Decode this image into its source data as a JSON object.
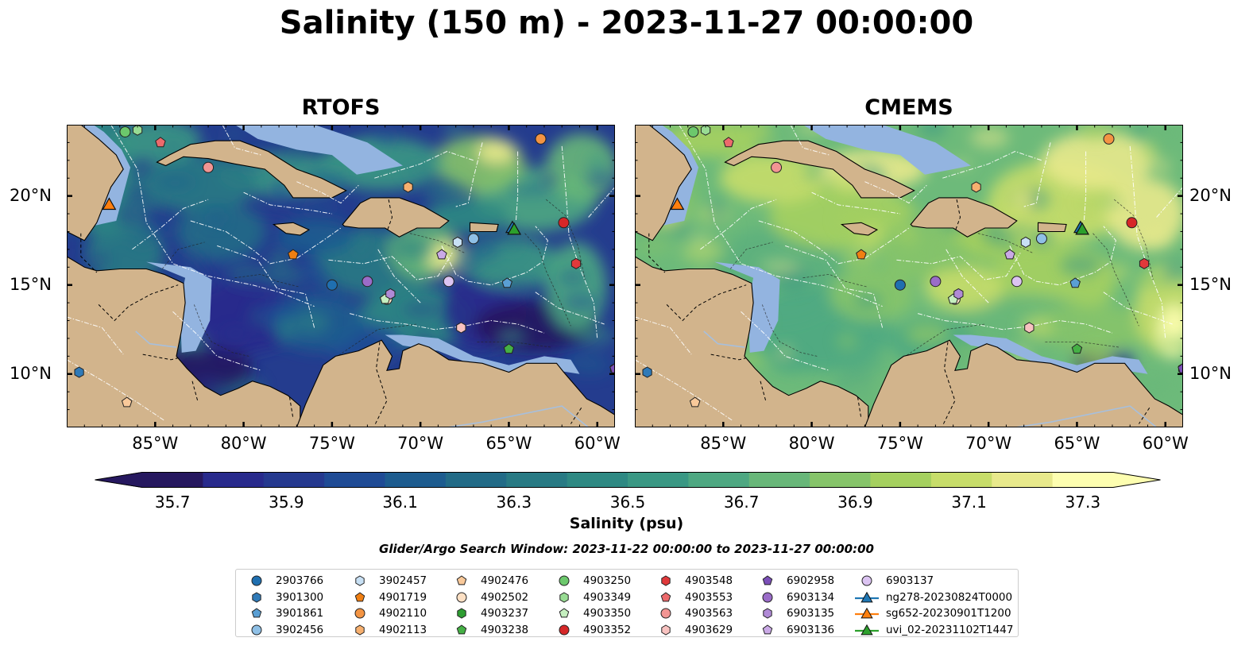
{
  "title": "Salinity (150 m) - 2023-11-27 00:00:00",
  "panels": [
    {
      "title": "RTOFS",
      "palette": "rtofs"
    },
    {
      "title": "CMEMS",
      "palette": "cmems"
    }
  ],
  "axes": {
    "lon_ticks": [
      "85°W",
      "80°W",
      "75°W",
      "70°W",
      "65°W",
      "60°W"
    ],
    "lat_ticks": [
      "20°N",
      "15°N",
      "10°N"
    ],
    "lon_range": [
      -90,
      -59
    ],
    "lat_range": [
      7,
      24
    ]
  },
  "colorbar": {
    "label": "Salinity (psu)",
    "ticks": [
      "35.7",
      "35.9",
      "36.1",
      "36.3",
      "36.5",
      "36.7",
      "36.9",
      "37.1",
      "37.3"
    ],
    "range": [
      35.7,
      37.3
    ],
    "extend": "both",
    "colors": [
      "#26185f",
      "#282a8c",
      "#25398f",
      "#1f4b95",
      "#1d5c8f",
      "#226b87",
      "#287a84",
      "#2e8983",
      "#3a9884",
      "#4ea882",
      "#68b779",
      "#86c46a",
      "#a5d05f",
      "#c7dd6a",
      "#e8e98c",
      "#fdfeb0"
    ]
  },
  "search_window": "Glider/Argo Search Window: 2023-11-22 00:00:00 to 2023-11-27 00:00:00",
  "legend": [
    {
      "label": "2903766",
      "marker": "circle",
      "color": "#1f6fb0"
    },
    {
      "label": "3901300",
      "marker": "hexagon",
      "color": "#2f7ab8"
    },
    {
      "label": "3901861",
      "marker": "pentagon",
      "color": "#5a9fd4"
    },
    {
      "label": "3902456",
      "marker": "circle",
      "color": "#8fc0e6"
    },
    {
      "label": "3902457",
      "marker": "hexagon",
      "color": "#c8e0f4"
    },
    {
      "label": "4901719",
      "marker": "pentagon",
      "color": "#f07f12"
    },
    {
      "label": "4902110",
      "marker": "circle",
      "color": "#f39443"
    },
    {
      "label": "4902113",
      "marker": "hexagon",
      "color": "#f7b06f"
    },
    {
      "label": "4902476",
      "marker": "pentagon",
      "color": "#f9c99a"
    },
    {
      "label": "4902502",
      "marker": "circle",
      "color": "#fde0c4"
    },
    {
      "label": "4903237",
      "marker": "hexagon",
      "color": "#2e9d32"
    },
    {
      "label": "4903238",
      "marker": "pentagon",
      "color": "#45b045"
    },
    {
      "label": "4903250",
      "marker": "circle",
      "color": "#6cc86c"
    },
    {
      "label": "4903349",
      "marker": "hexagon",
      "color": "#98dc93"
    },
    {
      "label": "4903350",
      "marker": "pentagon",
      "color": "#c5efbf"
    },
    {
      "label": "4903352",
      "marker": "circle",
      "color": "#d62728"
    },
    {
      "label": "4903548",
      "marker": "hexagon",
      "color": "#e0393b"
    },
    {
      "label": "4903553",
      "marker": "pentagon",
      "color": "#ec6a6c"
    },
    {
      "label": "4903563",
      "marker": "circle",
      "color": "#f29593"
    },
    {
      "label": "4903629",
      "marker": "hexagon",
      "color": "#f8c2c0"
    },
    {
      "label": "6902958",
      "marker": "pentagon",
      "color": "#7b4fb8"
    },
    {
      "label": "6903134",
      "marker": "circle",
      "color": "#9a6cc8"
    },
    {
      "label": "6903135",
      "marker": "hexagon",
      "color": "#b08ad6"
    },
    {
      "label": "6903136",
      "marker": "pentagon",
      "color": "#caa9e6"
    },
    {
      "label": "6903137",
      "marker": "circle",
      "color": "#dcc4f2"
    },
    {
      "label": "ng278-20230824T0000",
      "marker": "triangle-line",
      "color": "#1f77b4"
    },
    {
      "label": "sg652-20230901T1200",
      "marker": "triangle-line",
      "color": "#ff7f0e"
    },
    {
      "label": "uvi_02-20231102T1447",
      "marker": "triangle-line",
      "color": "#2ca02c"
    }
  ],
  "platforms": [
    {
      "label": "2903766",
      "lon": -75.0,
      "lat": 15.0
    },
    {
      "label": "3901300",
      "lon": -89.3,
      "lat": 10.1
    },
    {
      "label": "3901861",
      "lon": -65.1,
      "lat": 15.1
    },
    {
      "label": "3902456",
      "lon": -67.0,
      "lat": 17.6
    },
    {
      "label": "3902457",
      "lon": -67.9,
      "lat": 17.4
    },
    {
      "label": "4901719",
      "lon": -77.2,
      "lat": 16.7
    },
    {
      "label": "4902110",
      "lon": -63.2,
      "lat": 23.2
    },
    {
      "label": "4902113",
      "lon": -70.7,
      "lat": 20.5
    },
    {
      "label": "4902476",
      "lon": -86.6,
      "lat": 8.4
    },
    {
      "label": "4902502",
      "lon": -71.9,
      "lat": 14.2
    },
    {
      "label": "4903237",
      "lon": -59.0,
      "lat": 10.3
    },
    {
      "label": "4903238",
      "lon": -65.0,
      "lat": 11.4
    },
    {
      "label": "4903250",
      "lon": -86.7,
      "lat": 23.6
    },
    {
      "label": "4903349",
      "lon": -86.0,
      "lat": 23.7
    },
    {
      "label": "4903350",
      "lon": -72.0,
      "lat": 14.2
    },
    {
      "label": "4903352",
      "lon": -61.9,
      "lat": 18.5
    },
    {
      "label": "4903548",
      "lon": -61.2,
      "lat": 16.2
    },
    {
      "label": "4903553",
      "lon": -84.7,
      "lat": 23.0
    },
    {
      "label": "4903563",
      "lon": -82.0,
      "lat": 21.6
    },
    {
      "label": "4903629",
      "lon": -67.7,
      "lat": 12.6
    },
    {
      "label": "6902958",
      "lon": -59.0,
      "lat": 10.3
    },
    {
      "label": "6903134",
      "lon": -73.0,
      "lat": 15.2
    },
    {
      "label": "6903135",
      "lon": -71.7,
      "lat": 14.5
    },
    {
      "label": "6903136",
      "lon": -68.8,
      "lat": 16.7
    },
    {
      "label": "6903137",
      "lon": -68.4,
      "lat": 15.2
    }
  ],
  "gliders": [
    {
      "label": "ng278-20230824T0000",
      "lon": -64.8,
      "lat": 18.2
    },
    {
      "label": "sg652-20230901T1200",
      "lon": -87.6,
      "lat": 19.5
    },
    {
      "label": "uvi_02-20231102T1447",
      "lon": -64.7,
      "lat": 18.1
    }
  ]
}
